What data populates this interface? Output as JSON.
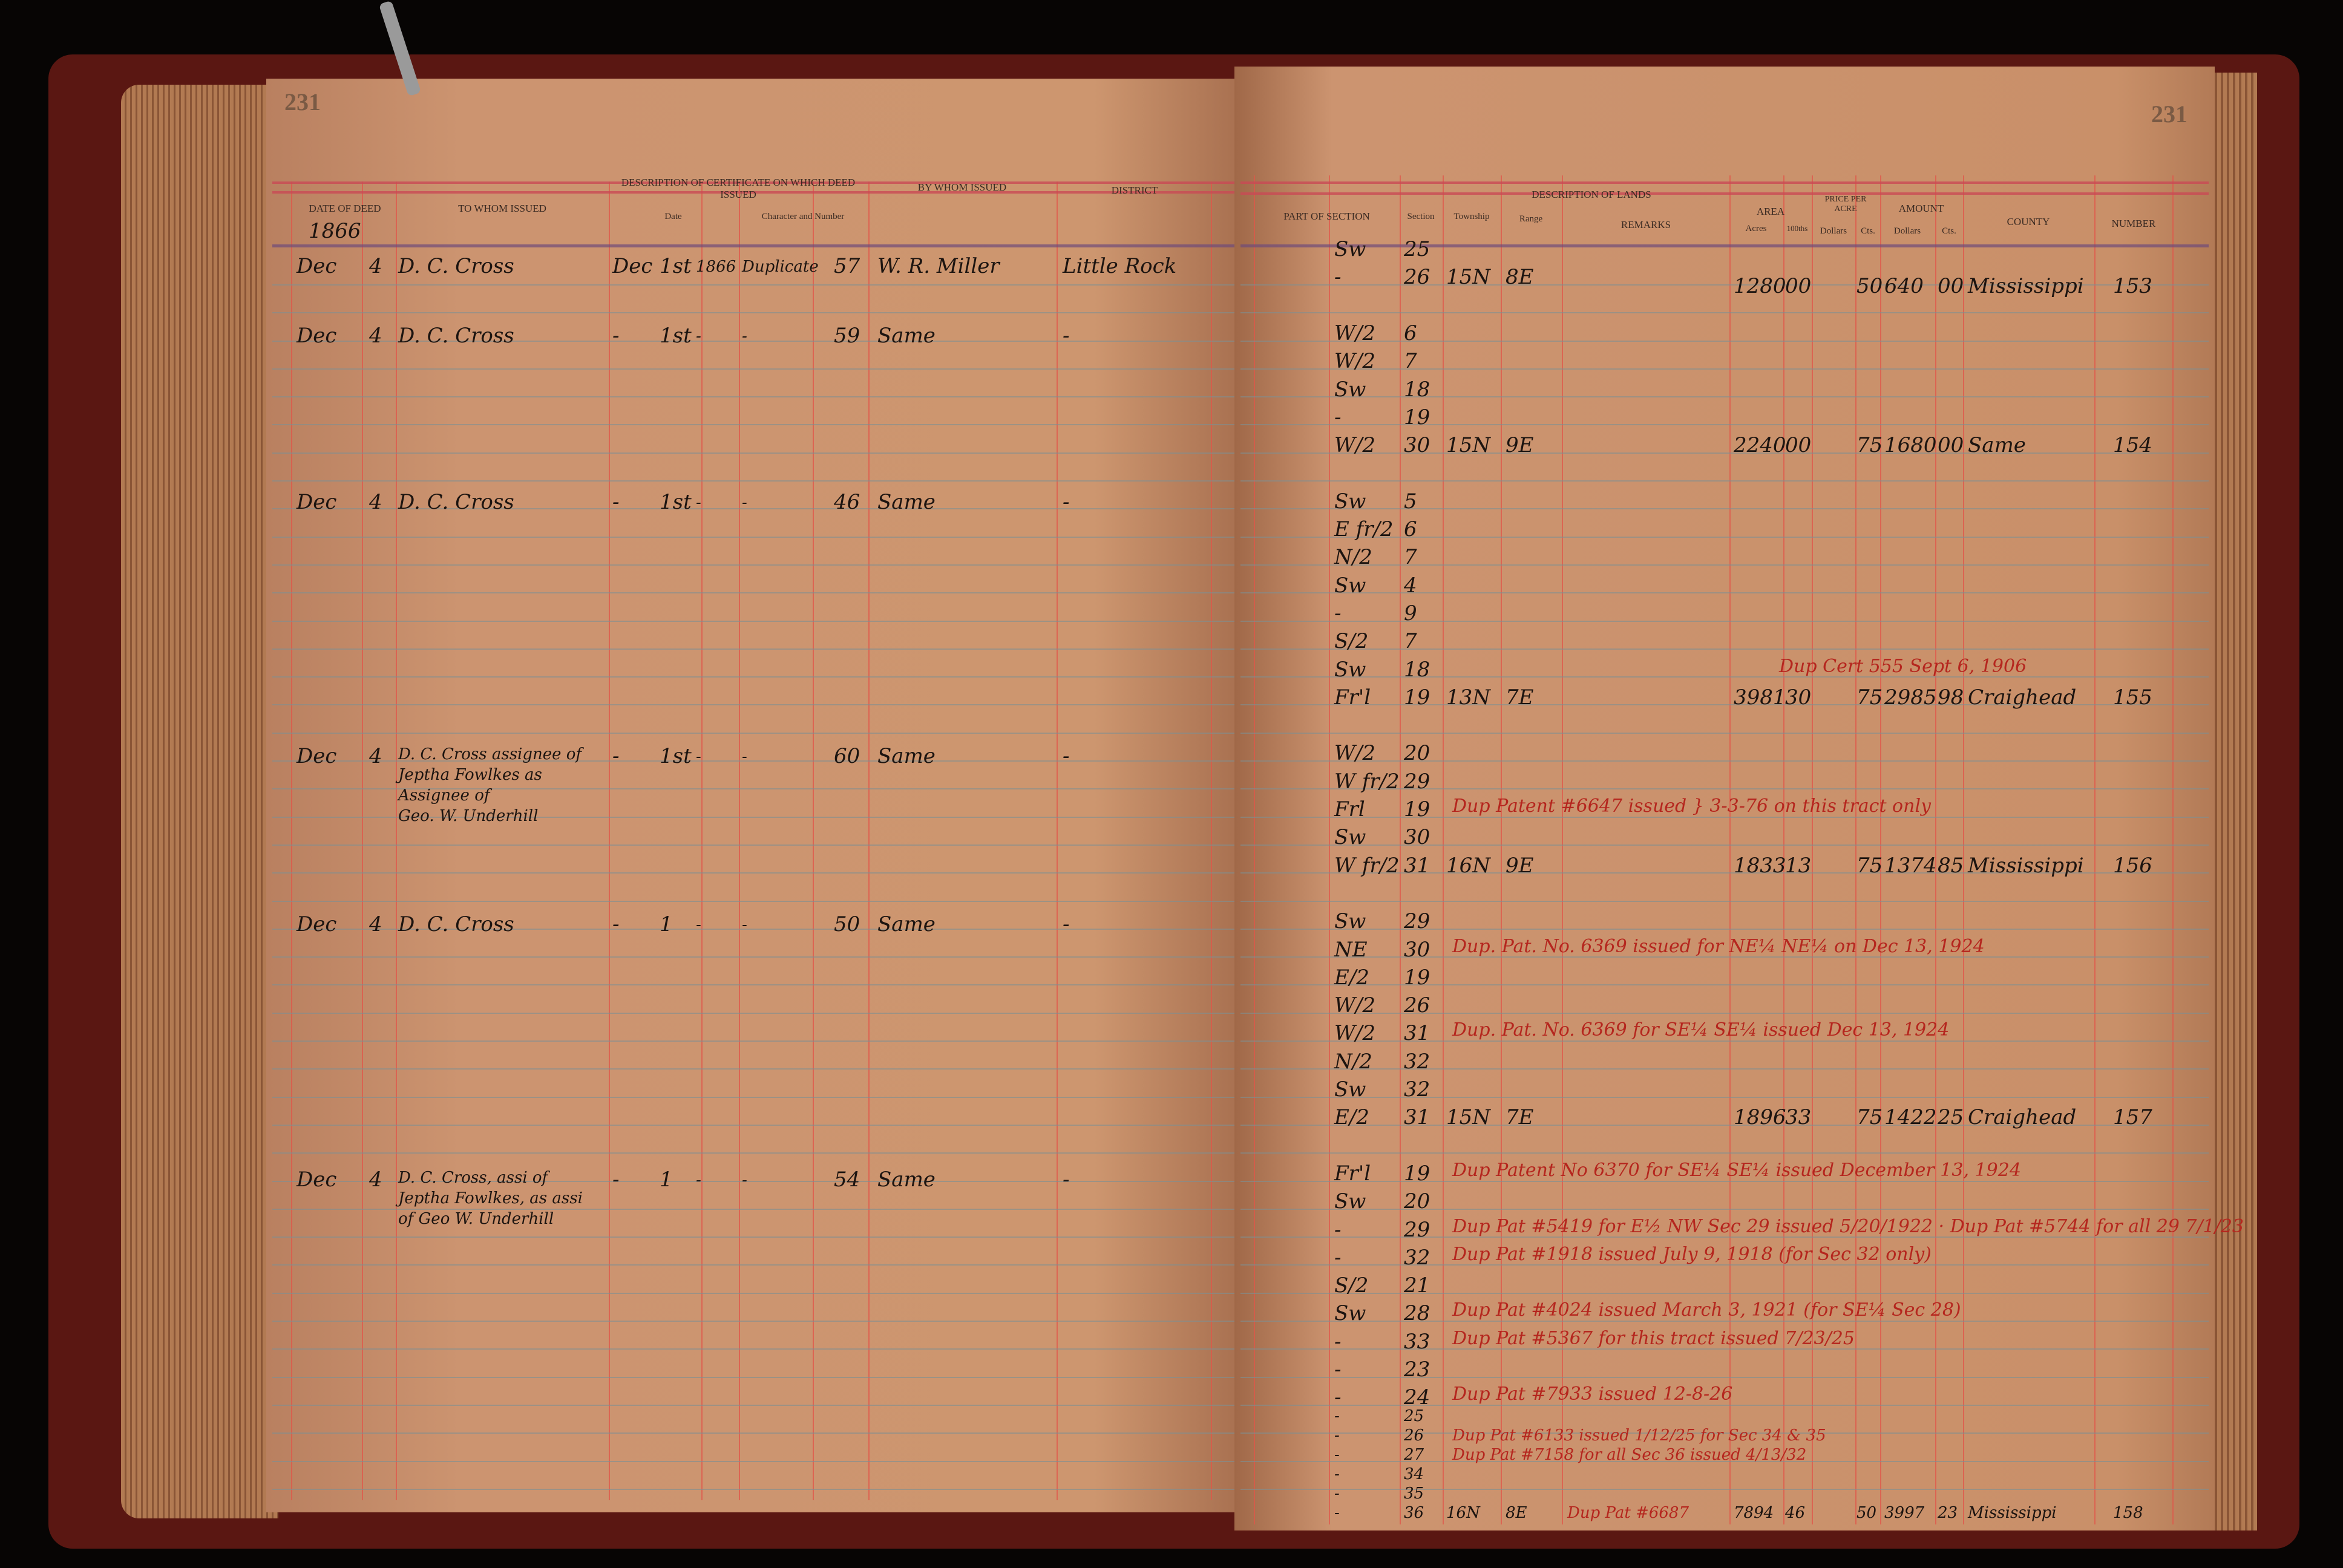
{
  "colors": {
    "paper": "#c8906a",
    "red_ink": "#b5261e",
    "black_ink": "#1c1410",
    "ruling_red": "#e0554a",
    "ruling_blue": "#7d8f92",
    "cover": "#5a1712"
  },
  "left_page": {
    "page_number": "231",
    "headers": {
      "date_of_deed": "DATE OF DEED",
      "to_whom_issued": "TO WHOM ISSUED",
      "certificate": "DESCRIPTION OF CERTIFICATE ON WHICH DEED ISSUED",
      "cert_date": "Date",
      "character_number": "Character and Number",
      "by_whom_issued": "BY WHOM ISSUED",
      "district": "DISTRICT"
    },
    "year": "1866",
    "entries": [
      {
        "month": "Dec",
        "day": "4",
        "name": [
          "D. C. Cross"
        ],
        "cert_month": "Dec",
        "cert_day": "1st",
        "cert_year": "1866",
        "character": "Duplicate",
        "number": "57",
        "by_whom": "W. R. Miller",
        "district": "Little Rock"
      },
      {
        "month": "Dec",
        "day": "4",
        "name": [
          "D. C. Cross"
        ],
        "cert_month": "-",
        "cert_day": "1st",
        "cert_year": "-",
        "character": "-",
        "number": "59",
        "by_whom": "Same",
        "district": "-"
      },
      {
        "month": "Dec",
        "day": "4",
        "name": [
          "D. C. Cross"
        ],
        "cert_month": "-",
        "cert_day": "1st",
        "cert_year": "-",
        "character": "-",
        "number": "46",
        "by_whom": "Same",
        "district": "-"
      },
      {
        "month": "Dec",
        "day": "4",
        "name": [
          "D. C. Cross assignee of",
          "Jeptha Fowlkes as Assignee of",
          "Geo. W. Underhill"
        ],
        "cert_month": "-",
        "cert_day": "1st",
        "cert_year": "-",
        "character": "-",
        "number": "60",
        "by_whom": "Same",
        "district": "-"
      },
      {
        "month": "Dec",
        "day": "4",
        "name": [
          "D. C. Cross"
        ],
        "cert_month": "-",
        "cert_day": "1",
        "cert_year": "-",
        "character": "-",
        "number": "50",
        "by_whom": "Same",
        "district": "-"
      },
      {
        "month": "Dec",
        "day": "4",
        "name": [
          "D. C. Cross, assi of",
          "Jeptha Fowlkes, as assi",
          "of Geo W. Underhill"
        ],
        "cert_month": "-",
        "cert_day": "1",
        "cert_year": "-",
        "character": "-",
        "number": "54",
        "by_whom": "Same",
        "district": "-"
      }
    ]
  },
  "right_page": {
    "page_number": "231",
    "headers": {
      "description_of_lands": "DESCRIPTION OF LANDS",
      "part_of_section": "PART OF SECTION",
      "section": "Section",
      "township": "Township",
      "range": "Range",
      "remarks": "REMARKS",
      "area": "AREA",
      "acres": "Acres",
      "hundredths": "100ths",
      "price_per_acre": "PRICE PER ACRE",
      "price_dollars": "Dollars",
      "price_cts": "Cts.",
      "amount": "AMOUNT",
      "amount_dollars": "Dollars",
      "amount_cts": "Cts.",
      "county": "COUNTY",
      "number": "NUMBER"
    },
    "rows": [
      {
        "part": "Sw",
        "section": "25"
      },
      {
        "part": "-",
        "section": "26",
        "township": "15N",
        "range": "8E",
        "acres": "1280",
        "hundredths": "00",
        "price_cts": "50",
        "amount_dollars": "640",
        "amount_cts": "00",
        "county": "Mississippi",
        "number": "153"
      },
      {
        "part": "W/2",
        "section": "6"
      },
      {
        "part": "W/2",
        "section": "7"
      },
      {
        "part": "Sw",
        "section": "18"
      },
      {
        "part": "-",
        "section": "19"
      },
      {
        "part": "W/2",
        "section": "30",
        "township": "15N",
        "range": "9E",
        "acres": "2240",
        "hundredths": "00",
        "price_cts": "75",
        "amount_dollars": "1680",
        "amount_cts": "00",
        "county": "Same",
        "number": "154"
      },
      {
        "part": "Sw",
        "section": "5"
      },
      {
        "part": "E fr/2",
        "section": "6"
      },
      {
        "part": "N/2",
        "section": "7"
      },
      {
        "part": "Sw",
        "section": "4"
      },
      {
        "part": "-",
        "section": "9"
      },
      {
        "part": "S/2",
        "section": "7"
      },
      {
        "part": "Sw",
        "section": "18",
        "remark": "Dup Cert 555 Sept 6, 1906"
      },
      {
        "part": "Fr'l",
        "section": "19",
        "township": "13N",
        "range": "7E",
        "acres": "3981",
        "hundredths": "30",
        "price_cts": "75",
        "amount_dollars": "2985",
        "amount_cts": "98",
        "county": "Craighead",
        "number": "155"
      },
      {
        "part": "W/2",
        "section": "20"
      },
      {
        "part": "W fr/2",
        "section": "29"
      },
      {
        "part": "Frl",
        "section": "19",
        "remark": "Dup Patent #6647 issued } 3-3-76 on this tract only"
      },
      {
        "part": "Sw",
        "section": "30"
      },
      {
        "part": "W fr/2",
        "section": "31",
        "township": "16N",
        "range": "9E",
        "acres": "1833",
        "hundredths": "13",
        "price_cts": "75",
        "amount_dollars": "1374",
        "amount_cts": "85",
        "county": "Mississippi",
        "number": "156"
      },
      {
        "part": "Sw",
        "section": "29"
      },
      {
        "part": "NE",
        "section": "30",
        "remark": "Dup. Pat. No. 6369 issued for NE¼ NE¼ on Dec 13, 1924"
      },
      {
        "part": "E/2",
        "section": "19"
      },
      {
        "part": "W/2",
        "section": "26"
      },
      {
        "part": "W/2",
        "section": "31",
        "remark": "Dup. Pat. No. 6369 for SE¼ SE¼ issued Dec 13, 1924"
      },
      {
        "part": "N/2",
        "section": "32"
      },
      {
        "part": "Sw",
        "section": "32"
      },
      {
        "part": "E/2",
        "section": "31",
        "township": "15N",
        "range": "7E",
        "acres": "1896",
        "hundredths": "33",
        "price_cts": "75",
        "amount_dollars": "1422",
        "amount_cts": "25",
        "county": "Craighead",
        "number": "157"
      },
      {
        "part": "Fr'l",
        "section": "19",
        "remark": "Dup Patent No 6370 for SE¼ SE¼ issued December 13, 1924"
      },
      {
        "part": "Sw",
        "section": "20"
      },
      {
        "part": "-",
        "section": "29",
        "remark": "Dup Pat #5419 for E½ NW Sec 29 issued 5/20/1922 · Dup Pat #5744 for all 29 7/1/23"
      },
      {
        "part": "-",
        "section": "32",
        "remark": "Dup Pat #1918 issued July 9, 1918 (for Sec 32 only)"
      },
      {
        "part": "S/2",
        "section": "21"
      },
      {
        "part": "Sw",
        "section": "28",
        "remark": "Dup Pat #4024 issued March 3, 1921 (for SE¼ Sec 28)"
      },
      {
        "part": "-",
        "section": "33",
        "remark": "Dup Pat #5367 for this tract issued 7/23/25"
      },
      {
        "part": "-",
        "section": "23"
      },
      {
        "part": "-",
        "section": "24",
        "remark": "Dup Pat #7933 issued 12-8-26"
      },
      {
        "part": "-",
        "section": "25"
      },
      {
        "part": "-",
        "section": "26",
        "remark": "Dup Pat #6133 issued 1/12/25 for Sec 34 & 35"
      },
      {
        "part": "-",
        "section": "27",
        "remark": "Dup Pat #7158 for all Sec 36 issued 4/13/32"
      },
      {
        "part": "-",
        "section": "34"
      },
      {
        "part": "-",
        "section": "35"
      },
      {
        "part": "-",
        "section": "36",
        "township": "16N",
        "range": "8E",
        "remark": "Dup Pat #6687",
        "acres": "7894",
        "hundredths": "46",
        "price_cts": "50",
        "amount_dollars": "3997",
        "amount_cts": "23",
        "county": "Mississippi",
        "number": "158"
      }
    ]
  }
}
